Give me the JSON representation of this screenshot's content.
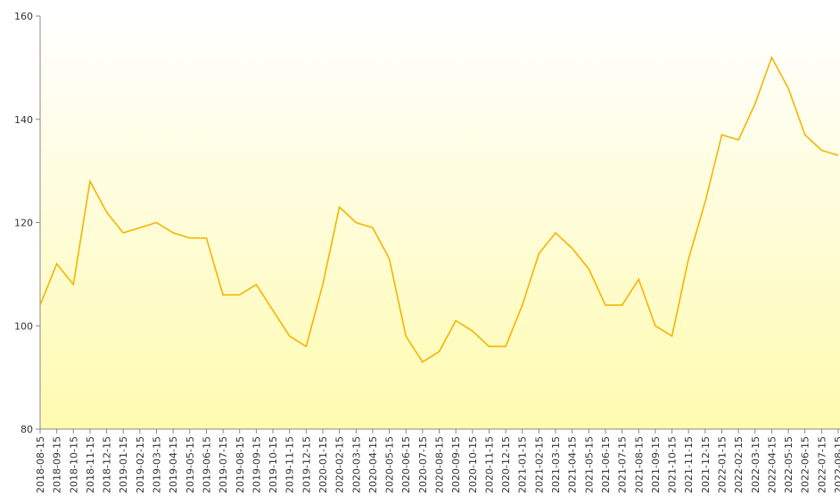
{
  "chart_data": {
    "type": "line",
    "categories": [
      "2018-08-15",
      "2018-09-15",
      "2018-10-15",
      "2018-11-15",
      "2018-12-15",
      "2019-01-15",
      "2019-02-15",
      "2019-03-15",
      "2019-04-15",
      "2019-05-15",
      "2019-06-15",
      "2019-07-15",
      "2019-08-15",
      "2019-09-15",
      "2019-10-15",
      "2019-11-15",
      "2019-12-15",
      "2020-01-15",
      "2020-02-15",
      "2020-03-15",
      "2020-04-15",
      "2020-05-15",
      "2020-06-15",
      "2020-07-15",
      "2020-08-15",
      "2020-09-15",
      "2020-10-15",
      "2020-11-15",
      "2020-12-15",
      "2021-01-15",
      "2021-02-15",
      "2021-03-15",
      "2021-04-15",
      "2021-05-15",
      "2021-06-15",
      "2021-07-15",
      "2021-08-15",
      "2021-09-15",
      "2021-10-15",
      "2021-11-15",
      "2021-12-15",
      "2022-01-15",
      "2022-02-15",
      "2022-03-15",
      "2022-04-15",
      "2022-05-15",
      "2022-06-15",
      "2022-07-15",
      "2022-08-15"
    ],
    "series": [
      {
        "color": "#f5b400",
        "values": [
          104,
          112,
          108,
          128,
          122,
          118,
          119,
          120,
          118,
          117,
          117,
          106,
          106,
          108,
          103,
          98,
          96,
          108,
          123,
          120,
          119,
          113,
          98,
          93,
          95,
          101,
          99,
          96,
          96,
          104,
          114,
          118,
          115,
          111,
          104,
          104,
          109,
          100,
          98,
          113,
          124,
          137,
          136,
          143,
          152,
          146,
          137,
          134,
          133
        ]
      }
    ],
    "ylim": [
      80,
      160
    ],
    "yticks": [
      80,
      100,
      120,
      140,
      160
    ]
  }
}
